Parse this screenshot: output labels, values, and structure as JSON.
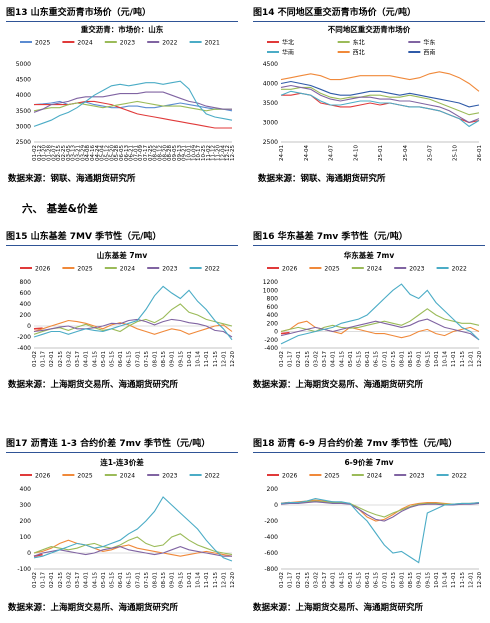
{
  "captions": [
    "图13  山东重交沥青市场价（元/吨）",
    "图14  不同地区重交沥青市场价（元/吨）",
    "图15  山东基差 7MV 季节性（元/吨）",
    "图16  华东基差 7mv 季节性（元/吨）",
    "图17  沥青连 1-3 合约价差 7mv 季节性（元/吨）",
    "图18  沥青 6-9 月合约价差 7mv 季节性（元/吨）"
  ],
  "source_a": "数据来源：钢联、海通期货研究所",
  "source_b": "数据来源：上海期货交易所、海通期货研究所",
  "section_title": "六、   基差&价差",
  "chart_data": [
    {
      "type": "line",
      "title": "重交沥青：市场价：山东",
      "legend": [
        "2025",
        "2024",
        "2023",
        "2022",
        "2021"
      ],
      "colors": [
        "#5b8bd1",
        "#e03a3a",
        "#9bbb59",
        "#8064a2",
        "#4bacc6"
      ],
      "ylim": [
        2500,
        5000
      ],
      "yticks": [
        2500,
        3000,
        3500,
        4000,
        4500,
        5000
      ],
      "xticks": [
        "01-02",
        "01-12",
        "01-20",
        "01-28",
        "02-07",
        "02-15",
        "02-25",
        "03-05",
        "03-13",
        "03-21",
        "03-29",
        "04-08",
        "04-16",
        "04-24",
        "05-04",
        "05-12",
        "05-20",
        "05-28",
        "06-05",
        "06-13",
        "06-21",
        "07-01",
        "07-09",
        "07-17",
        "07-25",
        "08-02",
        "08-12",
        "08-20",
        "08-28",
        "09-05",
        "09-13",
        "09-21",
        "10-01",
        "10-09",
        "10-17",
        "10-25",
        "11-02",
        "11-12",
        "11-20",
        "12-04",
        "12-12",
        "12-25"
      ],
      "series": [
        {
          "name": "2025",
          "values": [
            3700,
            3720,
            3750,
            3800,
            3700,
            3750,
            3780,
            3700,
            3650,
            3600,
            3600,
            3650,
            3650,
            3600,
            3600,
            3650,
            3700,
            3750,
            3700,
            3650,
            3600,
            3550,
            3550,
            3500
          ]
        },
        {
          "name": "2024",
          "values": [
            3700,
            3700,
            3700,
            3700,
            3700,
            3750,
            3800,
            3800,
            3750,
            3700,
            3600,
            3500,
            3400,
            3350,
            3300,
            3250,
            3200,
            3150,
            3100,
            3050,
            3000,
            2950,
            2950,
            2950
          ]
        },
        {
          "name": "2023",
          "values": [
            3500,
            3550,
            3600,
            3600,
            3700,
            3750,
            3700,
            3650,
            3600,
            3650,
            3700,
            3750,
            3800,
            3750,
            3700,
            3650,
            3650,
            3650,
            3600,
            3550,
            3500,
            3550,
            3550,
            3550
          ]
        },
        {
          "name": "2022",
          "values": [
            3450,
            3550,
            3700,
            3750,
            3800,
            3900,
            3950,
            3950,
            3950,
            4000,
            4050,
            4050,
            4050,
            4100,
            4100,
            4100,
            4000,
            3900,
            3800,
            3750,
            3650,
            3600,
            3550,
            3550
          ]
        },
        {
          "name": "2021",
          "values": [
            3000,
            3100,
            3200,
            3350,
            3450,
            3600,
            3800,
            4000,
            4150,
            4300,
            4350,
            4300,
            4350,
            4400,
            4400,
            4350,
            4400,
            4450,
            4200,
            3700,
            3400,
            3300,
            3250,
            3200
          ]
        }
      ]
    },
    {
      "type": "line",
      "title": "不同地区重交沥青市场价",
      "legend": [
        "华北",
        "东北",
        "华东",
        "华南",
        "西北",
        "西南"
      ],
      "colors": [
        "#e03a3a",
        "#9bbb59",
        "#8064a2",
        "#4bacc6",
        "#f0893a",
        "#2f5aa8"
      ],
      "ylim": [
        2500,
        4500
      ],
      "yticks": [
        2500,
        3000,
        3500,
        4000,
        4500
      ],
      "xticks": [
        "24-01",
        "24-04",
        "24-07",
        "24-10",
        "25-01",
        "25-04",
        "25-07",
        "25-10",
        "26-01"
      ],
      "series": [
        {
          "name": "华北",
          "values": [
            3700,
            3700,
            3750,
            3700,
            3500,
            3450,
            3400,
            3400,
            3450,
            3500,
            3450,
            3500,
            3450,
            3400,
            3400,
            3350,
            3300,
            3200,
            3100,
            3000,
            3050
          ]
        },
        {
          "name": "东北",
          "values": [
            3850,
            3850,
            3900,
            3900,
            3750,
            3650,
            3600,
            3650,
            3650,
            3700,
            3700,
            3650,
            3650,
            3700,
            3650,
            3600,
            3500,
            3400,
            3300,
            3200,
            3250
          ]
        },
        {
          "name": "华东",
          "values": [
            3900,
            3950,
            3900,
            3850,
            3700,
            3600,
            3550,
            3600,
            3650,
            3650,
            3600,
            3600,
            3550,
            3550,
            3500,
            3450,
            3400,
            3300,
            3150,
            3000,
            3100
          ]
        },
        {
          "name": "华南",
          "values": [
            3700,
            3800,
            3750,
            3700,
            3550,
            3450,
            3450,
            3500,
            3550,
            3550,
            3500,
            3500,
            3450,
            3400,
            3400,
            3350,
            3300,
            3200,
            3100,
            2900,
            3050
          ]
        },
        {
          "name": "西北",
          "values": [
            4100,
            4150,
            4200,
            4250,
            4200,
            4100,
            4100,
            4150,
            4200,
            4200,
            4200,
            4200,
            4150,
            4100,
            4150,
            4250,
            4300,
            4250,
            4150,
            4000,
            3800
          ]
        },
        {
          "name": "西南",
          "values": [
            4000,
            4050,
            4000,
            3950,
            3850,
            3750,
            3700,
            3700,
            3750,
            3800,
            3800,
            3750,
            3700,
            3750,
            3700,
            3650,
            3600,
            3550,
            3500,
            3400,
            3450
          ]
        }
      ]
    },
    {
      "type": "line",
      "title": "山东基差 7mv",
      "legend": [
        "2026",
        "2025",
        "2024",
        "2023",
        "2022"
      ],
      "colors": [
        "#e03a3a",
        "#f0893a",
        "#9bbb59",
        "#8064a2",
        "#4bacc6"
      ],
      "ylim": [
        -400,
        800
      ],
      "yticks": [
        -400,
        -200,
        0,
        200,
        400,
        600,
        800
      ],
      "xticks": [
        "01-02",
        "01-17",
        "02-01",
        "02-15",
        "03-02",
        "03-17",
        "04-01",
        "04-15",
        "05-01",
        "05-15",
        "06-01",
        "06-15",
        "07-01",
        "07-15",
        "08-01",
        "08-15",
        "09-01",
        "09-15",
        "10-01",
        "10-14",
        "11-01",
        "11-15",
        "12-01",
        "12-20"
      ],
      "series": [
        {
          "name": "2026",
          "values": [
            -50,
            -40
          ]
        },
        {
          "name": "2025",
          "values": [
            -100,
            -50,
            0,
            50,
            100,
            80,
            50,
            0,
            -50,
            20,
            60,
            20,
            -50,
            -100,
            -150,
            -100,
            -50,
            -80,
            -150,
            -100,
            -50,
            0,
            20,
            -100
          ]
        },
        {
          "name": "2024",
          "values": [
            -150,
            -100,
            -50,
            -30,
            -80,
            -20,
            30,
            -30,
            -80,
            -50,
            -100,
            0,
            80,
            120,
            60,
            150,
            300,
            400,
            250,
            200,
            120,
            80,
            40,
            0
          ]
        },
        {
          "name": "2023",
          "values": [
            -100,
            -80,
            -50,
            -20,
            0,
            -50,
            -50,
            -30,
            0,
            50,
            40,
            100,
            120,
            80,
            20,
            80,
            120,
            100,
            60,
            40,
            0,
            -80,
            -100,
            -200
          ]
        },
        {
          "name": "2022",
          "values": [
            -200,
            -150,
            -100,
            -100,
            -150,
            -100,
            -50,
            -80,
            -100,
            -50,
            0,
            50,
            100,
            300,
            550,
            720,
            600,
            500,
            650,
            450,
            300,
            100,
            -50,
            -250
          ]
        }
      ]
    },
    {
      "type": "line",
      "title": "华东基差 7mv",
      "legend": [
        "2026",
        "2025",
        "2024",
        "2023",
        "2022"
      ],
      "colors": [
        "#e03a3a",
        "#f0893a",
        "#9bbb59",
        "#8064a2",
        "#4bacc6"
      ],
      "ylim": [
        -400,
        1200
      ],
      "yticks": [
        -400,
        -200,
        0,
        200,
        400,
        600,
        800,
        1000,
        1200
      ],
      "xticks": [
        "01-02",
        "01-17",
        "02-01",
        "02-15",
        "03-02",
        "03-17",
        "04-01",
        "04-15",
        "05-01",
        "05-15",
        "06-01",
        "06-15",
        "07-01",
        "07-15",
        "08-01",
        "08-15",
        "09-01",
        "09-15",
        "10-01",
        "10-14",
        "11-01",
        "11-15",
        "12-01",
        "12-20"
      ],
      "series": [
        {
          "name": "2026",
          "values": [
            -50,
            -30
          ]
        },
        {
          "name": "2025",
          "values": [
            0,
            50,
            200,
            250,
            100,
            50,
            0,
            -50,
            100,
            50,
            0,
            -50,
            -50,
            -100,
            -150,
            -100,
            0,
            50,
            -50,
            -100,
            0,
            50,
            100,
            0
          ]
        },
        {
          "name": "2024",
          "values": [
            0,
            50,
            100,
            50,
            0,
            100,
            150,
            100,
            80,
            100,
            150,
            200,
            250,
            200,
            150,
            250,
            400,
            550,
            400,
            300,
            250,
            200,
            200,
            150
          ]
        },
        {
          "name": "2023",
          "values": [
            -100,
            -50,
            0,
            50,
            100,
            50,
            0,
            50,
            100,
            150,
            200,
            250,
            200,
            150,
            100,
            150,
            250,
            300,
            200,
            100,
            50,
            0,
            -50,
            -200
          ]
        },
        {
          "name": "2022",
          "values": [
            -300,
            -200,
            -100,
            -50,
            0,
            50,
            100,
            200,
            250,
            300,
            400,
            600,
            800,
            1000,
            1150,
            900,
            800,
            1000,
            700,
            500,
            300,
            100,
            0,
            -200
          ]
        }
      ]
    },
    {
      "type": "line",
      "title": "连1-连3价差",
      "legend": [
        "2026",
        "2025",
        "2024",
        "2023",
        "2022"
      ],
      "colors": [
        "#e03a3a",
        "#f0893a",
        "#9bbb59",
        "#8064a2",
        "#4bacc6"
      ],
      "ylim": [
        -100,
        400
      ],
      "yticks": [
        -100,
        0,
        100,
        200,
        300,
        400
      ],
      "xticks": [
        "01-02",
        "01-17",
        "02-01",
        "02-15",
        "03-02",
        "03-17",
        "04-01",
        "04-15",
        "05-01",
        "05-15",
        "06-01",
        "06-15",
        "07-01",
        "07-15",
        "08-01",
        "08-15",
        "09-01",
        "09-15",
        "10-01",
        "10-14",
        "11-01",
        "11-15",
        "12-01",
        "12-20"
      ],
      "series": [
        {
          "name": "2026",
          "values": [
            -20,
            -10
          ]
        },
        {
          "name": "2025",
          "values": [
            0,
            10,
            30,
            60,
            80,
            60,
            50,
            30,
            10,
            20,
            40,
            50,
            30,
            20,
            10,
            0,
            -10,
            -20,
            -10,
            0,
            10,
            0,
            -10,
            -20
          ]
        },
        {
          "name": "2024",
          "values": [
            0,
            20,
            40,
            30,
            20,
            30,
            50,
            60,
            40,
            30,
            50,
            80,
            100,
            60,
            40,
            50,
            100,
            120,
            80,
            50,
            30,
            10,
            0,
            -10
          ]
        },
        {
          "name": "2023",
          "values": [
            -20,
            0,
            10,
            20,
            10,
            0,
            -10,
            0,
            20,
            30,
            40,
            20,
            10,
            0,
            -10,
            0,
            20,
            40,
            20,
            10,
            0,
            -10,
            -20,
            -20
          ]
        },
        {
          "name": "2022",
          "values": [
            -30,
            -20,
            0,
            20,
            40,
            60,
            50,
            30,
            40,
            60,
            80,
            120,
            150,
            200,
            260,
            350,
            300,
            250,
            200,
            150,
            80,
            20,
            -30,
            -50
          ]
        }
      ]
    },
    {
      "type": "line",
      "title": "6-9价差 7mv",
      "legend": [
        "2026",
        "2025",
        "2024",
        "2023",
        "2022"
      ],
      "colors": [
        "#e03a3a",
        "#f0893a",
        "#9bbb59",
        "#8064a2",
        "#4bacc6"
      ],
      "ylim": [
        -800,
        200
      ],
      "yticks": [
        -800,
        -600,
        -400,
        -200,
        0,
        200
      ],
      "xticks": [
        "01-02",
        "01-17",
        "02-01",
        "02-15",
        "03-02",
        "03-17",
        "04-01",
        "04-15",
        "05-01",
        "05-15",
        "06-01",
        "06-15",
        "07-01",
        "07-15",
        "08-01",
        "08-15",
        "09-01",
        "09-15",
        "10-01",
        "10-14",
        "11-01",
        "11-15",
        "12-01",
        "12-20"
      ],
      "series": [
        {
          "name": "2026",
          "values": [
            20,
            30
          ]
        },
        {
          "name": "2025",
          "values": [
            20,
            30,
            40,
            50,
            60,
            50,
            40,
            30,
            20,
            -50,
            -150,
            -200,
            -180,
            -120,
            -50,
            0,
            20,
            30,
            30,
            20,
            10,
            10,
            20,
            30
          ]
        },
        {
          "name": "2024",
          "values": [
            20,
            30,
            30,
            40,
            50,
            40,
            30,
            30,
            20,
            -30,
            -80,
            -120,
            -150,
            -100,
            -60,
            -20,
            10,
            20,
            20,
            10,
            10,
            20,
            20,
            20
          ]
        },
        {
          "name": "2023",
          "values": [
            10,
            20,
            20,
            30,
            40,
            30,
            20,
            20,
            10,
            -50,
            -120,
            -180,
            -200,
            -150,
            -80,
            -30,
            0,
            10,
            10,
            0,
            0,
            10,
            10,
            20
          ]
        },
        {
          "name": "2022",
          "values": [
            20,
            30,
            30,
            50,
            80,
            60,
            40,
            40,
            20,
            -100,
            -200,
            -350,
            -500,
            -600,
            -580,
            -650,
            -720,
            -100,
            -50,
            0,
            10,
            20,
            20,
            30
          ]
        }
      ]
    }
  ]
}
